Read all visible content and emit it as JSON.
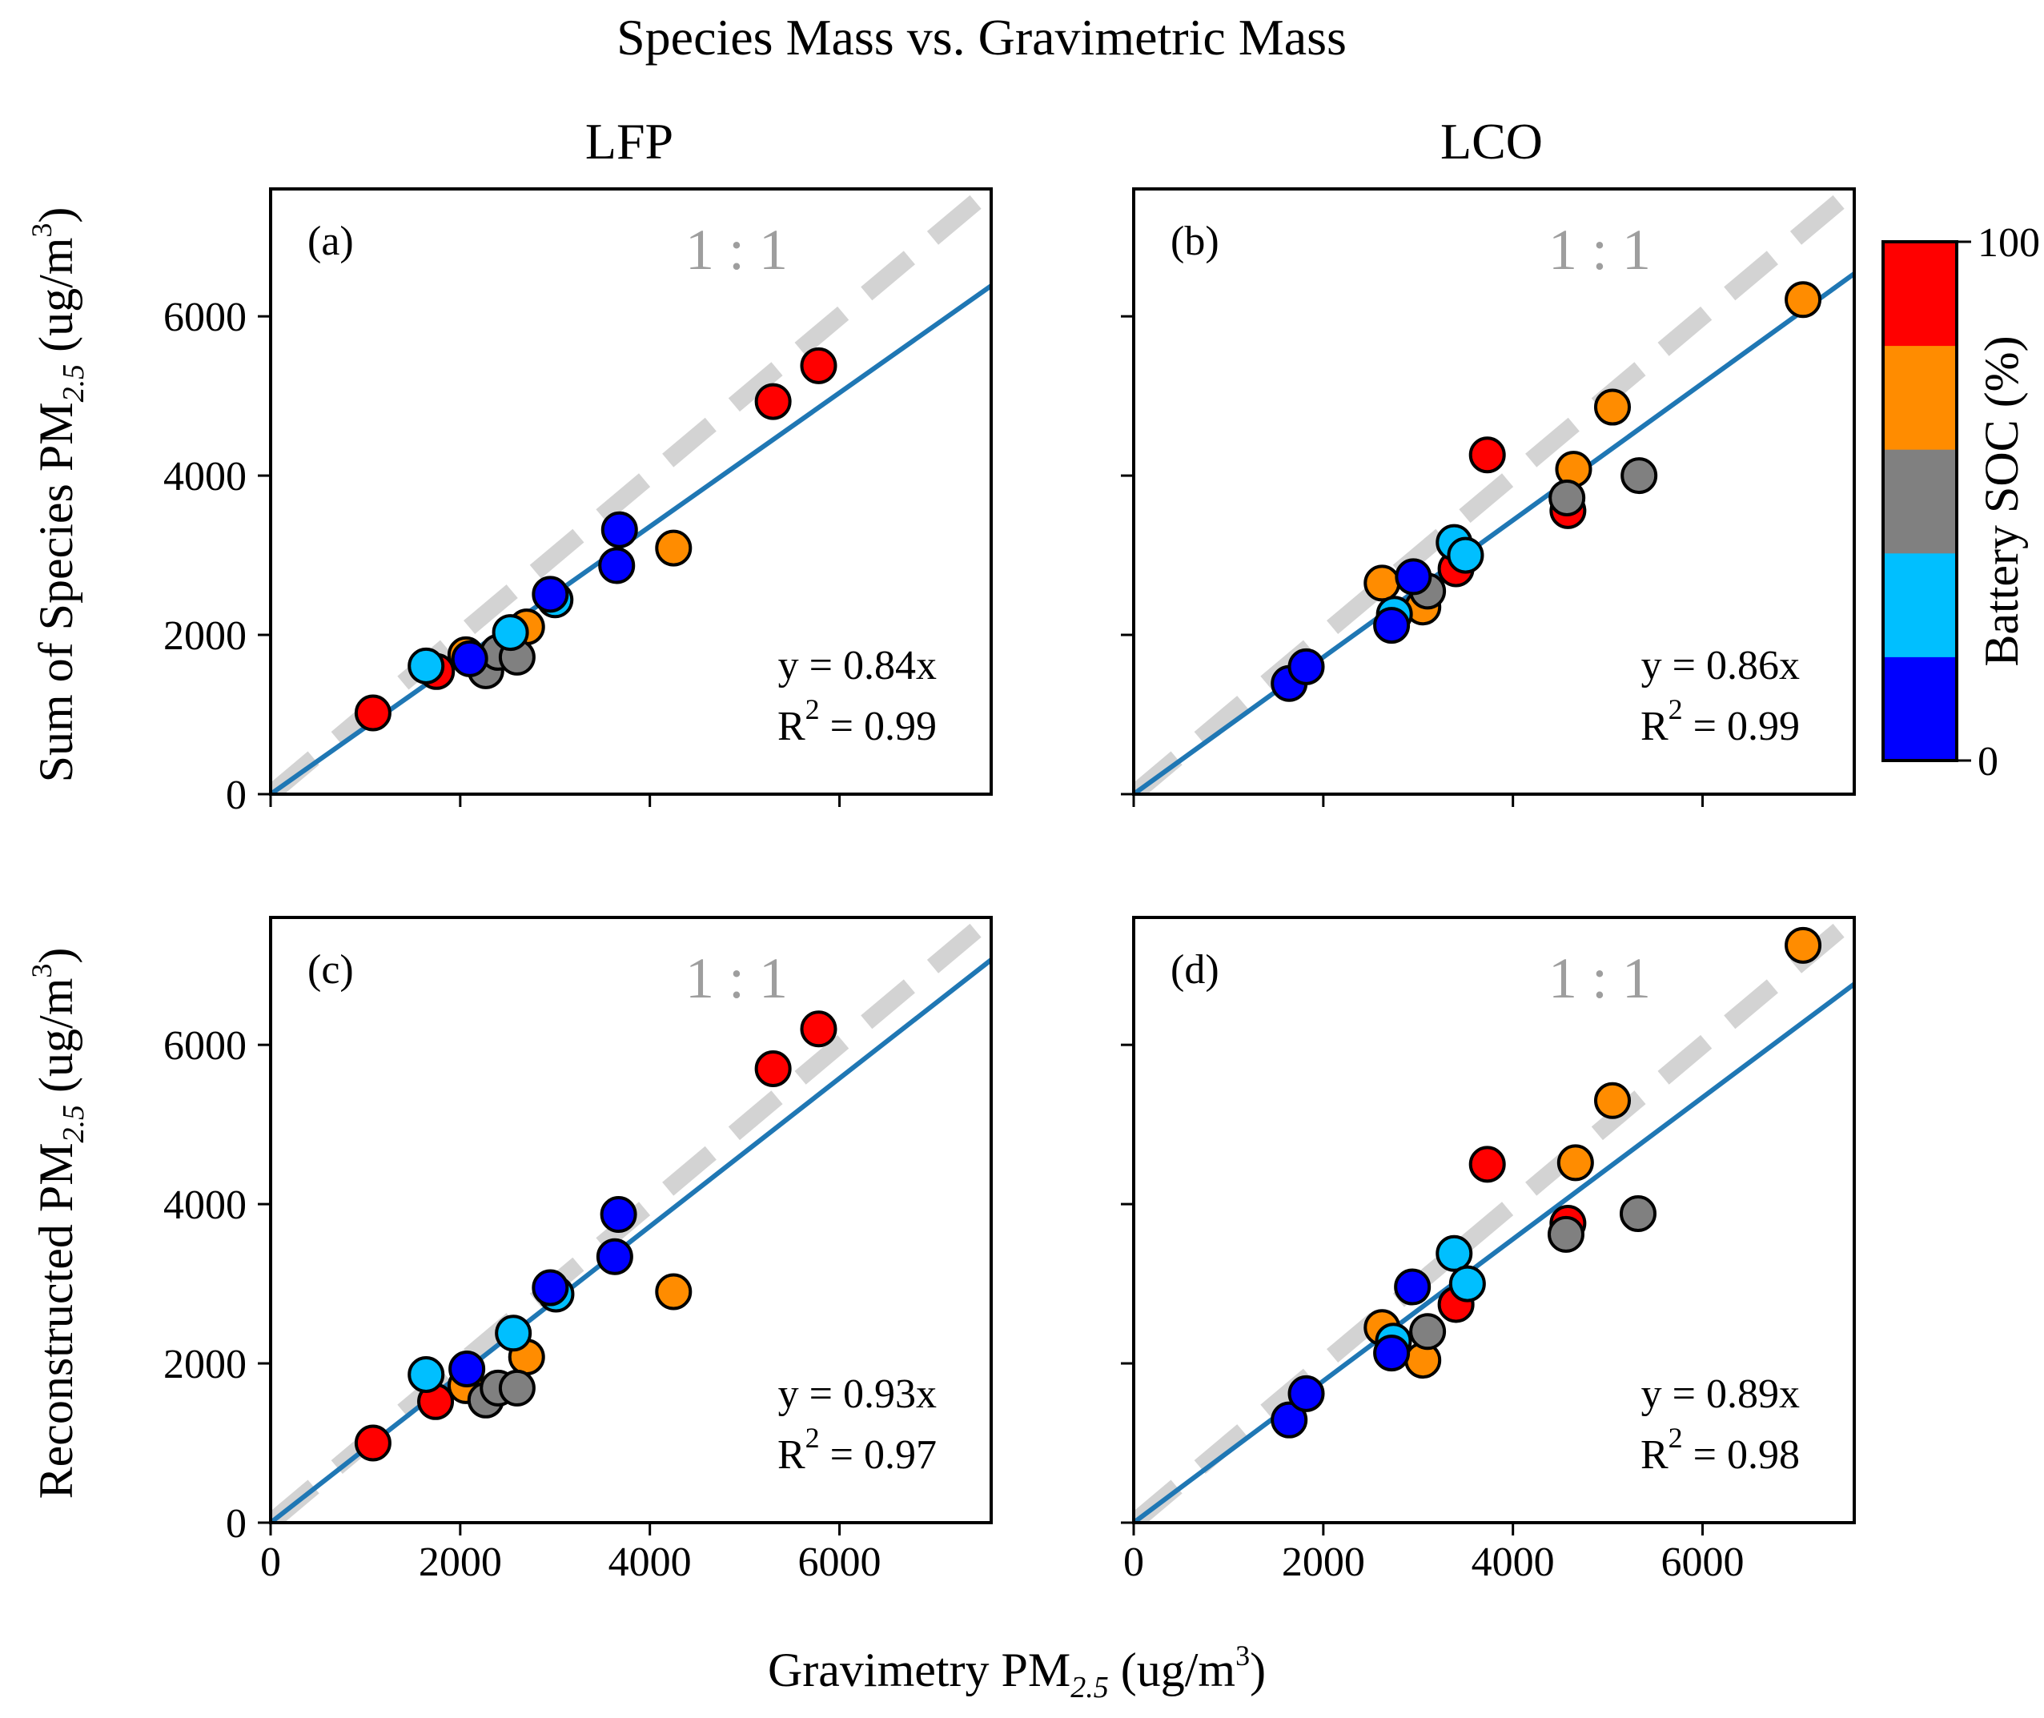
{
  "chart_data": {
    "title": "Species Mass vs. Gravimetric Mass",
    "type": "scatter",
    "columns": [
      "LFP",
      "LCO"
    ],
    "xlabel": "Gravimetry PM2.5 (ug/m3)",
    "xlabel_parts": {
      "main": "Gravimetry PM",
      "sub": "2.5",
      "unit_open": " (ug/m",
      "sup": "3",
      "unit_close": ")"
    },
    "row_ylabels": [
      {
        "main": "Sum of Species PM",
        "sub": "2.5",
        "unit_open": " (ug/m",
        "sup": "3",
        "unit_close": ")"
      },
      {
        "main": "Reconstructed PM",
        "sub": "2.5",
        "unit_open": " (ug/m",
        "sup": "3",
        "unit_close": ")"
      }
    ],
    "xlim": [
      0,
      7600
    ],
    "ylim": [
      0,
      7600
    ],
    "xticks": [
      0,
      2000,
      4000,
      6000
    ],
    "yticks": [
      0,
      2000,
      4000,
      6000
    ],
    "reference_line": {
      "label": "1 : 1",
      "slope": 1,
      "color": "#d3d3d3"
    },
    "fit_color": "#1f77b4",
    "colorbar": {
      "label": "Battery SOC (%)",
      "min": 0,
      "max": 100,
      "min_label": "0",
      "max_label": "100",
      "colors": [
        "#0000ff",
        "#00bfff",
        "#808080",
        "#ff8c00",
        "#ff0000"
      ]
    },
    "panels": [
      {
        "label": "(a)",
        "row": 0,
        "col": 0,
        "slope": 0.84,
        "eq_lhs": "y",
        "eq_rhs": "= 0.84x",
        "r2_lhs": "R",
        "r2_sup": "2",
        "r2_rhs": "= 0.99",
        "points": [
          {
            "x": 1080,
            "y": 1020,
            "soc": 100
          },
          {
            "x": 1750,
            "y": 1540,
            "soc": 100
          },
          {
            "x": 5300,
            "y": 4930,
            "soc": 100
          },
          {
            "x": 5780,
            "y": 5380,
            "soc": 100
          },
          {
            "x": 2060,
            "y": 1750,
            "soc": 75
          },
          {
            "x": 2700,
            "y": 2100,
            "soc": 75
          },
          {
            "x": 4250,
            "y": 3090,
            "soc": 75
          },
          {
            "x": 2270,
            "y": 1550,
            "soc": 50
          },
          {
            "x": 2400,
            "y": 1780,
            "soc": 50
          },
          {
            "x": 2600,
            "y": 1720,
            "soc": 50
          },
          {
            "x": 1640,
            "y": 1610,
            "soc": 25
          },
          {
            "x": 2530,
            "y": 2030,
            "soc": 25
          },
          {
            "x": 3000,
            "y": 2440,
            "soc": 25
          },
          {
            "x": 2100,
            "y": 1700,
            "soc": 0
          },
          {
            "x": 2950,
            "y": 2510,
            "soc": 0
          },
          {
            "x": 3650,
            "y": 2870,
            "soc": 0
          },
          {
            "x": 3680,
            "y": 3320,
            "soc": 0
          }
        ]
      },
      {
        "label": "(b)",
        "row": 0,
        "col": 1,
        "slope": 0.86,
        "eq_lhs": "y",
        "eq_rhs": "= 0.86x",
        "r2_lhs": "R",
        "r2_sup": "2",
        "r2_rhs": "= 0.99",
        "points": [
          {
            "x": 3400,
            "y": 2830,
            "soc": 100
          },
          {
            "x": 3730,
            "y": 4260,
            "soc": 100
          },
          {
            "x": 4580,
            "y": 3560,
            "soc": 100
          },
          {
            "x": 2620,
            "y": 2650,
            "soc": 75
          },
          {
            "x": 3050,
            "y": 2350,
            "soc": 75
          },
          {
            "x": 4640,
            "y": 4080,
            "soc": 75
          },
          {
            "x": 5050,
            "y": 4860,
            "soc": 75
          },
          {
            "x": 7060,
            "y": 6210,
            "soc": 75
          },
          {
            "x": 3100,
            "y": 2550,
            "soc": 50
          },
          {
            "x": 4570,
            "y": 3720,
            "soc": 50
          },
          {
            "x": 5330,
            "y": 4000,
            "soc": 50
          },
          {
            "x": 2750,
            "y": 2260,
            "soc": 25
          },
          {
            "x": 3380,
            "y": 3160,
            "soc": 25
          },
          {
            "x": 3500,
            "y": 3000,
            "soc": 25
          },
          {
            "x": 1640,
            "y": 1390,
            "soc": 0
          },
          {
            "x": 1820,
            "y": 1600,
            "soc": 0
          },
          {
            "x": 2720,
            "y": 2120,
            "soc": 0
          },
          {
            "x": 2950,
            "y": 2730,
            "soc": 0
          }
        ]
      },
      {
        "label": "(c)",
        "row": 1,
        "col": 0,
        "slope": 0.93,
        "eq_lhs": "y",
        "eq_rhs": "= 0.93x",
        "r2_lhs": "R",
        "r2_sup": "2",
        "r2_rhs": "= 0.97",
        "points": [
          {
            "x": 1080,
            "y": 1000,
            "soc": 100
          },
          {
            "x": 1740,
            "y": 1520,
            "soc": 100
          },
          {
            "x": 5300,
            "y": 5700,
            "soc": 100
          },
          {
            "x": 5780,
            "y": 6200,
            "soc": 100
          },
          {
            "x": 2060,
            "y": 1720,
            "soc": 75
          },
          {
            "x": 2700,
            "y": 2080,
            "soc": 75
          },
          {
            "x": 4250,
            "y": 2900,
            "soc": 75
          },
          {
            "x": 2270,
            "y": 1540,
            "soc": 50
          },
          {
            "x": 2400,
            "y": 1690,
            "soc": 50
          },
          {
            "x": 2600,
            "y": 1690,
            "soc": 50
          },
          {
            "x": 1640,
            "y": 1860,
            "soc": 25
          },
          {
            "x": 2560,
            "y": 2380,
            "soc": 25
          },
          {
            "x": 3010,
            "y": 2870,
            "soc": 25
          },
          {
            "x": 2070,
            "y": 1930,
            "soc": 0
          },
          {
            "x": 2950,
            "y": 2950,
            "soc": 0
          },
          {
            "x": 3630,
            "y": 3340,
            "soc": 0
          },
          {
            "x": 3670,
            "y": 3870,
            "soc": 0
          }
        ]
      },
      {
        "label": "(d)",
        "row": 1,
        "col": 1,
        "slope": 0.89,
        "eq_lhs": "y",
        "eq_rhs": "= 0.89x",
        "r2_lhs": "R",
        "r2_sup": "2",
        "r2_rhs": "= 0.98",
        "points": [
          {
            "x": 3400,
            "y": 2740,
            "soc": 100
          },
          {
            "x": 3730,
            "y": 4500,
            "soc": 100
          },
          {
            "x": 4580,
            "y": 3760,
            "soc": 100
          },
          {
            "x": 2620,
            "y": 2450,
            "soc": 75
          },
          {
            "x": 3050,
            "y": 2040,
            "soc": 75
          },
          {
            "x": 4660,
            "y": 4520,
            "soc": 75
          },
          {
            "x": 5050,
            "y": 5300,
            "soc": 75
          },
          {
            "x": 7060,
            "y": 7250,
            "soc": 75
          },
          {
            "x": 3100,
            "y": 2400,
            "soc": 50
          },
          {
            "x": 4560,
            "y": 3620,
            "soc": 50
          },
          {
            "x": 5320,
            "y": 3880,
            "soc": 50
          },
          {
            "x": 2740,
            "y": 2280,
            "soc": 25
          },
          {
            "x": 3380,
            "y": 3380,
            "soc": 25
          },
          {
            "x": 3520,
            "y": 3000,
            "soc": 25
          },
          {
            "x": 1640,
            "y": 1290,
            "soc": 0
          },
          {
            "x": 1820,
            "y": 1620,
            "soc": 0
          },
          {
            "x": 2720,
            "y": 2130,
            "soc": 0
          },
          {
            "x": 2940,
            "y": 2960,
            "soc": 0
          }
        ]
      }
    ]
  }
}
